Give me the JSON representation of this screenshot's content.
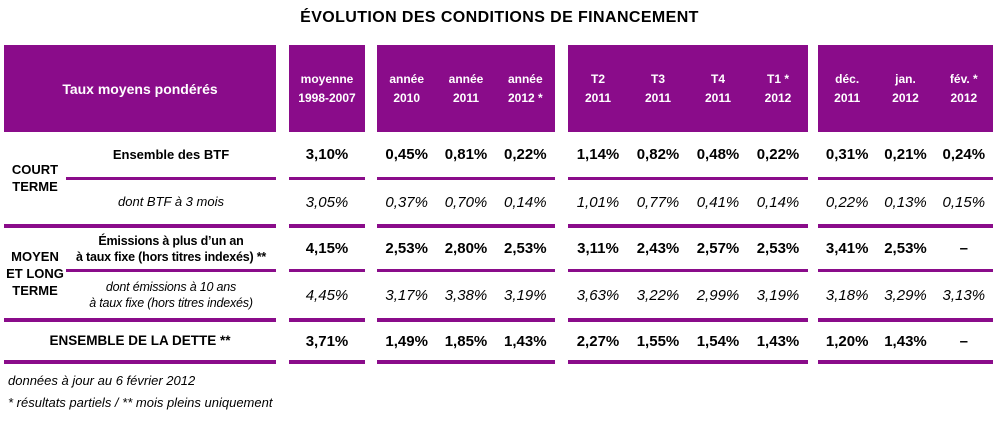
{
  "title": "ÉVOLUTION DES CONDITIONS DE FINANCEMENT",
  "colors": {
    "purple": "#8a0c8a",
    "header_text": "#ffffff",
    "text": "#000000"
  },
  "table": {
    "headers": {
      "corner": "Taux moyens pondérés",
      "moyenne": [
        {
          "l1": "moyenne",
          "l2": "1998-2007"
        }
      ],
      "annees": [
        {
          "l1": "année",
          "l2": "2010"
        },
        {
          "l1": "année",
          "l2": "2011"
        },
        {
          "l1": "année",
          "l2": "2012 *"
        }
      ],
      "trimestres": [
        {
          "l1": "T2",
          "l2": "2011"
        },
        {
          "l1": "T3",
          "l2": "2011"
        },
        {
          "l1": "T4",
          "l2": "2011"
        },
        {
          "l1": "T1 *",
          "l2": "2012"
        }
      ],
      "mois": [
        {
          "l1": "déc.",
          "l2": "2011"
        },
        {
          "l1": "jan.",
          "l2": "2012"
        },
        {
          "l1": "fév. *",
          "l2": "2012"
        }
      ]
    },
    "groups": {
      "court": "COURT TERME",
      "mlt": "MOYEN ET LONG TERME"
    },
    "rows": [
      {
        "label": "Ensemble des BTF",
        "moyenne": "3,10%",
        "annees": [
          "0,45%",
          "0,81%",
          "0,22%"
        ],
        "trimestres": [
          "1,14%",
          "0,82%",
          "0,48%",
          "0,22%"
        ],
        "mois": [
          "0,31%",
          "0,21%",
          "0,24%"
        ]
      },
      {
        "label": "dont BTF à 3 mois",
        "moyenne": "3,05%",
        "annees": [
          "0,37%",
          "0,70%",
          "0,14%"
        ],
        "trimestres": [
          "1,01%",
          "0,77%",
          "0,41%",
          "0,14%"
        ],
        "mois": [
          "0,22%",
          "0,13%",
          "0,15%"
        ]
      },
      {
        "label1": "Émissions à plus d’un an",
        "label2": "à taux fixe (hors titres indexés) **",
        "moyenne": "4,15%",
        "annees": [
          "2,53%",
          "2,80%",
          "2,53%"
        ],
        "trimestres": [
          "3,11%",
          "2,43%",
          "2,57%",
          "2,53%"
        ],
        "mois": [
          "3,41%",
          "2,53%",
          "–"
        ]
      },
      {
        "label1": "dont émissions à 10 ans",
        "label2": "à taux fixe (hors titres indexés)",
        "moyenne": "4,45%",
        "annees": [
          "3,17%",
          "3,38%",
          "3,19%"
        ],
        "trimestres": [
          "3,63%",
          "3,22%",
          "2,99%",
          "3,19%"
        ],
        "mois": [
          "3,18%",
          "3,29%",
          "3,13%"
        ]
      },
      {
        "label": "ENSEMBLE DE LA DETTE **",
        "moyenne": "3,71%",
        "annees": [
          "1,49%",
          "1,85%",
          "1,43%"
        ],
        "trimestres": [
          "2,27%",
          "1,55%",
          "1,54%",
          "1,43%"
        ],
        "mois": [
          "1,20%",
          "1,43%",
          "–"
        ]
      }
    ]
  },
  "footnotes": {
    "line1": "données à jour au 6 février 2012",
    "line2": "* résultats partiels / ** mois pleins uniquement"
  }
}
